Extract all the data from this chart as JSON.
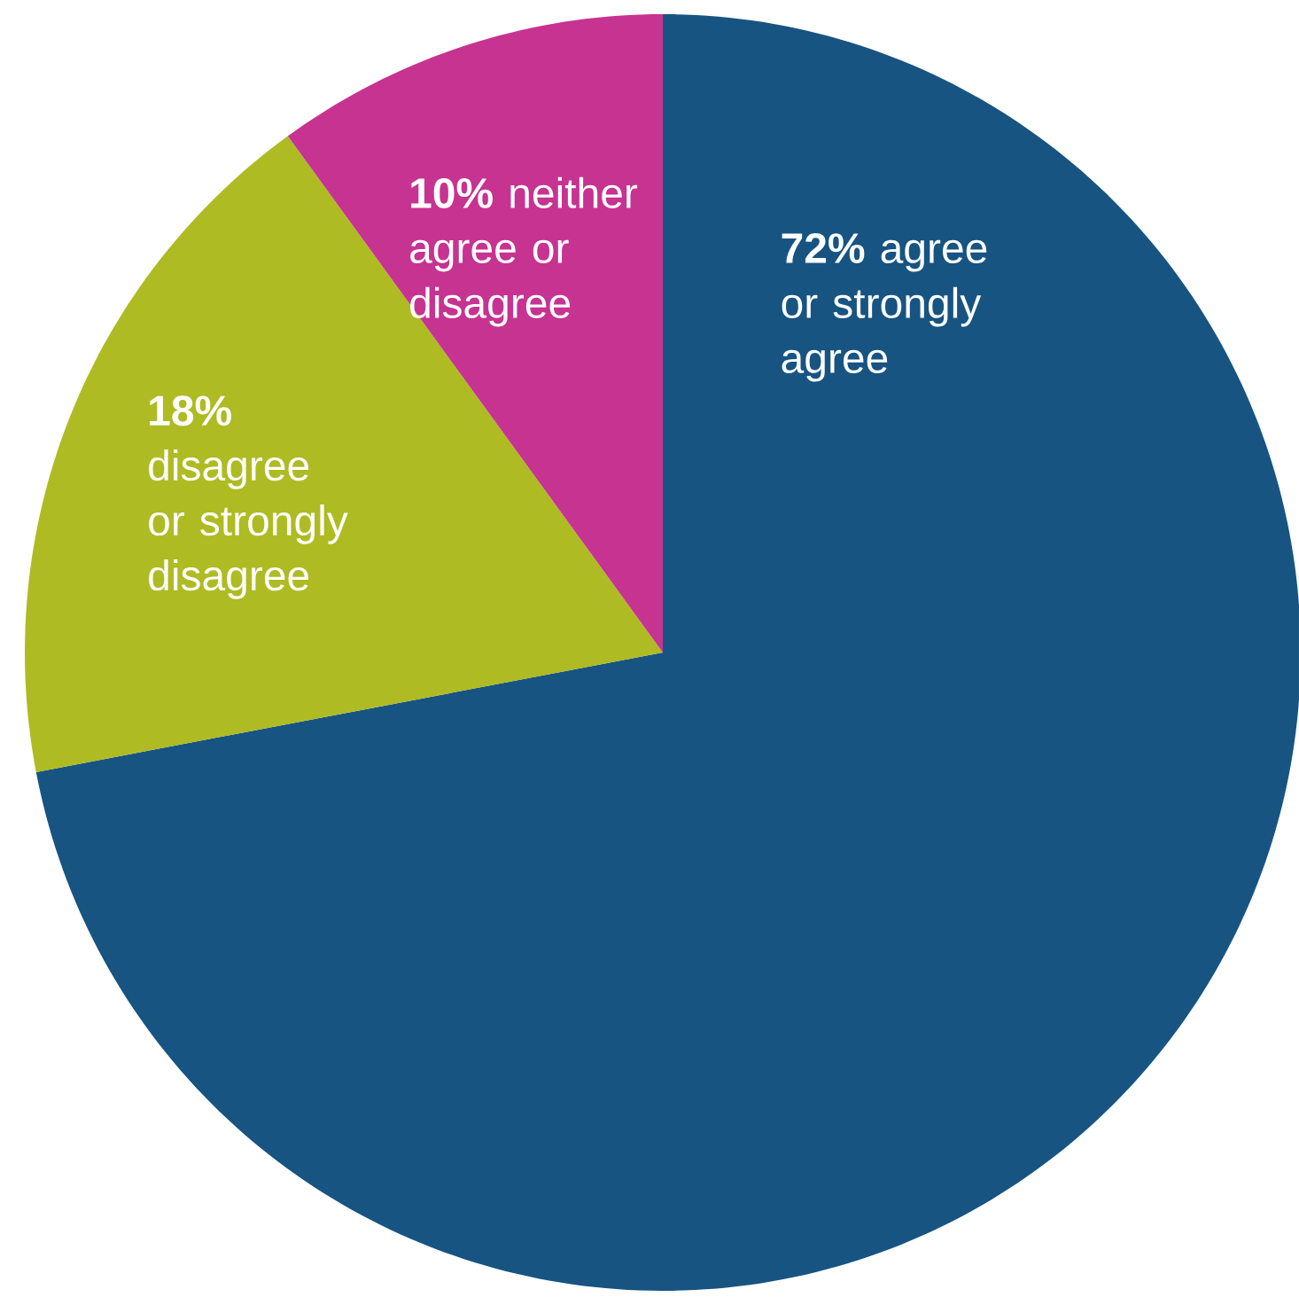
{
  "chart_data": {
    "type": "pie",
    "categories": [
      "agree or strongly agree",
      "disagree or strongly disagree",
      "neither agree or disagree"
    ],
    "values": [
      72,
      18,
      10
    ],
    "value_labels": [
      "72%",
      "18%",
      "10%"
    ],
    "colors": [
      "#175482",
      "#aebb23",
      "#c73391"
    ]
  }
}
